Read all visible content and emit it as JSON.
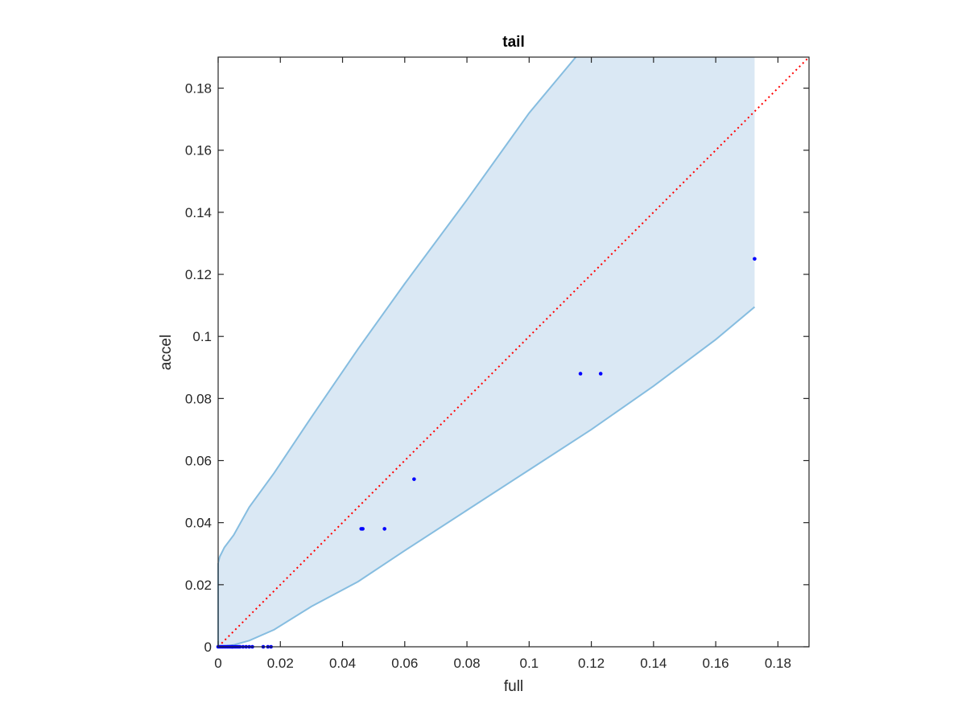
{
  "chart_data": {
    "type": "scatter",
    "title": "tail",
    "xlabel": "full",
    "ylabel": "accel",
    "xlim": [
      0,
      0.19
    ],
    "ylim": [
      0,
      0.19
    ],
    "xticks": [
      0,
      0.02,
      0.04,
      0.06,
      0.08,
      0.1,
      0.12,
      0.14,
      0.16,
      0.18
    ],
    "xtick_labels": [
      "0",
      "0.02",
      "0.04",
      "0.06",
      "0.08",
      "0.1",
      "0.12",
      "0.14",
      "0.16",
      "0.18"
    ],
    "yticks": [
      0,
      0.02,
      0.04,
      0.06,
      0.08,
      0.1,
      0.12,
      0.14,
      0.16,
      0.18
    ],
    "ytick_labels": [
      "0",
      "0.02",
      "0.04",
      "0.06",
      "0.08",
      "0.1",
      "0.12",
      "0.14",
      "0.16",
      "0.18"
    ],
    "grid": false,
    "reference_line": {
      "style": "dotted",
      "color": "#ff0000",
      "from": [
        0,
        0
      ],
      "to": [
        0.19,
        0.19
      ]
    },
    "band": {
      "fill_color": "#dae8f4",
      "edge_color": "#86bde0",
      "upper": [
        [
          0,
          0.027
        ],
        [
          0.0005,
          0.029
        ],
        [
          0.002,
          0.032
        ],
        [
          0.005,
          0.036
        ],
        [
          0.01,
          0.045
        ],
        [
          0.018,
          0.056
        ],
        [
          0.03,
          0.074
        ],
        [
          0.045,
          0.096
        ],
        [
          0.06,
          0.117
        ],
        [
          0.08,
          0.144
        ],
        [
          0.1,
          0.172
        ],
        [
          0.115,
          0.19
        ]
      ],
      "lower": [
        [
          0,
          0
        ],
        [
          0.005,
          0.0006
        ],
        [
          0.01,
          0.002
        ],
        [
          0.018,
          0.0055
        ],
        [
          0.03,
          0.013
        ],
        [
          0.045,
          0.021
        ],
        [
          0.06,
          0.031
        ],
        [
          0.08,
          0.044
        ],
        [
          0.1,
          0.057
        ],
        [
          0.12,
          0.07
        ],
        [
          0.14,
          0.084
        ],
        [
          0.16,
          0.099
        ],
        [
          0.1725,
          0.1095
        ]
      ],
      "right_edge_x": 0.1725
    },
    "series": [
      {
        "color": "#0000ff",
        "x": [
          0,
          0.0005,
          0.001,
          0.0015,
          0.002,
          0.0025,
          0.003,
          0.0035,
          0.004,
          0.0045,
          0.005,
          0.0055,
          0.006,
          0.0065,
          0.007,
          0.008,
          0.009,
          0.01,
          0.011,
          0.0145,
          0.016,
          0.017,
          0.0045,
          0.046,
          0.0465,
          0.0535,
          0.063,
          0.1165,
          0.123,
          0.1725
        ],
        "y": [
          0,
          0,
          0,
          0,
          0,
          0,
          0,
          0,
          0,
          0,
          0,
          0,
          0,
          0,
          0,
          0,
          0,
          0,
          0,
          0,
          0,
          0,
          0,
          0.038,
          0.038,
          0.038,
          0.054,
          0.088,
          0.088,
          0.125
        ]
      }
    ]
  }
}
